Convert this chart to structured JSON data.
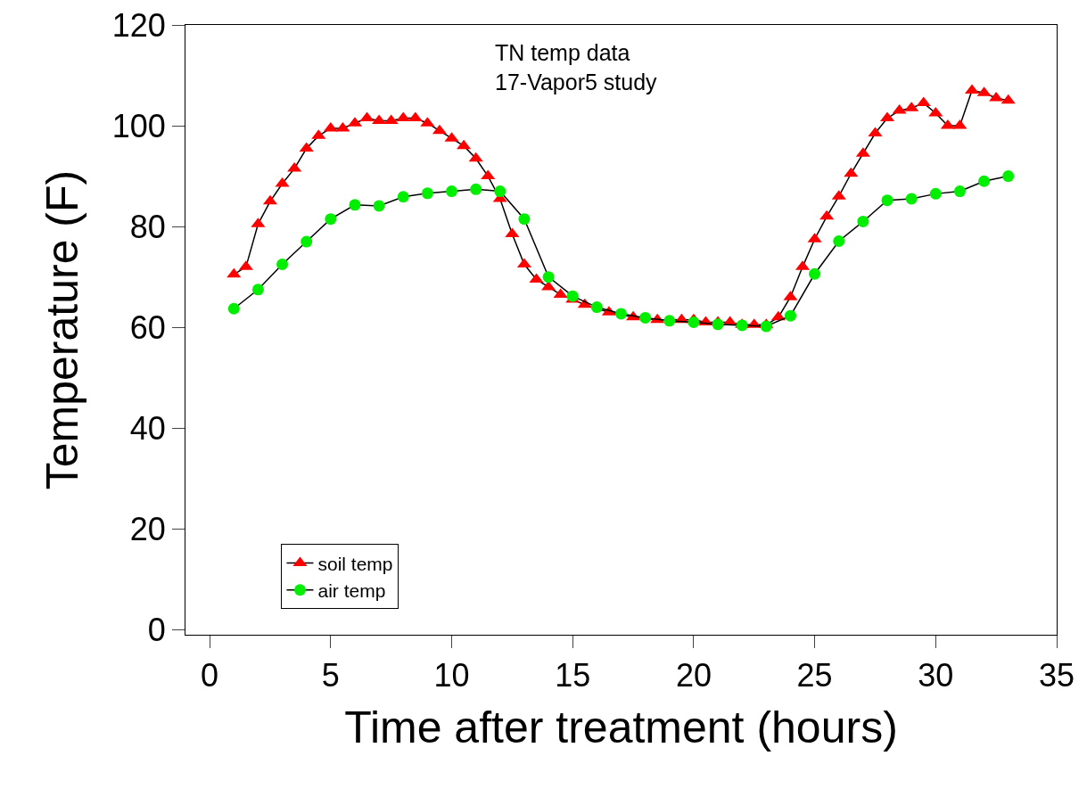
{
  "chart_data": {
    "type": "line",
    "xlabel": "Time after treatment (hours)",
    "ylabel": "Temperature (F)",
    "annotations": [
      "TN temp data\n17-Vapor5 study"
    ],
    "xlim": [
      -1,
      35
    ],
    "xticks": [
      0,
      5,
      10,
      15,
      20,
      25,
      30,
      35
    ],
    "ylim": [
      -1,
      120
    ],
    "yticks": [
      0,
      20,
      40,
      60,
      80,
      100,
      120
    ],
    "grid": false,
    "legend": "bottom left",
    "series": [
      {
        "name": "soil temp",
        "color": "#ff0000",
        "marker": "triangle",
        "x": [
          1,
          1.5,
          2,
          2.5,
          3,
          3.5,
          4,
          4.5,
          5,
          5.5,
          6,
          6.5,
          7,
          7.5,
          8,
          8.5,
          9,
          9.5,
          10,
          10.5,
          11,
          11.5,
          12,
          12.5,
          13,
          13.5,
          14,
          14.5,
          15,
          15.5,
          16.5,
          17.5,
          18.5,
          19.5,
          20,
          20.5,
          21,
          21.5,
          22,
          22.5,
          23,
          23.5,
          24,
          24.5,
          25,
          25.5,
          26,
          26.5,
          27,
          27.5,
          28,
          28.5,
          29,
          29.5,
          30,
          30.5,
          31,
          31.5,
          32,
          32.5,
          33
        ],
        "values": [
          70.5,
          72,
          80.5,
          85,
          88.5,
          91.5,
          95.5,
          98,
          99.5,
          99.5,
          100.5,
          101.5,
          101,
          101,
          101.5,
          101.5,
          100.5,
          99,
          97.5,
          96,
          93.5,
          90,
          85.5,
          78.5,
          72.5,
          69.5,
          68,
          66.5,
          65.5,
          64.5,
          63,
          62,
          61.5,
          61.5,
          61.5,
          61,
          61,
          61,
          60.5,
          60.5,
          60.5,
          62,
          66,
          72,
          77.5,
          82,
          86,
          90.5,
          94.5,
          98.5,
          101.5,
          103,
          103.5,
          104.5,
          102.5,
          100,
          100,
          107,
          106.5,
          105.5,
          105
        ]
      },
      {
        "name": "air temp",
        "color": "#00ee00",
        "marker": "circle",
        "x": [
          1,
          2,
          3,
          4,
          5,
          6,
          7,
          8,
          9,
          10,
          11,
          12,
          13,
          14,
          15,
          16,
          17,
          18,
          19,
          20,
          21,
          22,
          23,
          24,
          25,
          26,
          27,
          28,
          29,
          30,
          31,
          32,
          33
        ],
        "values": [
          63.7,
          67.5,
          72.5,
          77,
          81.5,
          84.3,
          84.1,
          85.9,
          86.6,
          87,
          87.4,
          87,
          81.5,
          70,
          66.2,
          64,
          62.7,
          61.9,
          61.3,
          61,
          60.6,
          60.4,
          60.2,
          62.3,
          70.6,
          77.1,
          81,
          85.2,
          85.5,
          86.5,
          87,
          89,
          90
        ]
      }
    ]
  }
}
